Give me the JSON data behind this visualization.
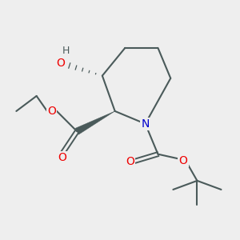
{
  "bg_color": "#eeeeee",
  "atom_colors": {
    "C": "#4a5a5a",
    "N": "#0000cd",
    "O": "#ee0000",
    "H": "#4a5a5a"
  },
  "bond_color": "#4a5a5a",
  "bond_width": 1.5
}
